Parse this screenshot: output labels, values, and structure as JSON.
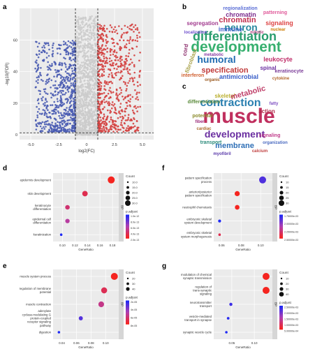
{
  "panels": {
    "a": "a",
    "b": "b",
    "c": "c",
    "d": "d",
    "e": "e",
    "f": "f",
    "g": "g"
  },
  "colors": {
    "down": "#4a5cb3",
    "up": "#d4403f",
    "ns": "#cccccc",
    "grad_low": "#1f2af5",
    "grad_mid": "#b03fb0",
    "grad_high": "#f5241f"
  },
  "chart_data": [
    {
      "panel": "a",
      "type": "scatter",
      "xlabel": "log2(FC)",
      "ylabel": "-log10(FDR)",
      "xticks": [
        "-5.0",
        "-2.5",
        "0",
        "2.5",
        "5.0"
      ],
      "yticks": [
        "0",
        "20",
        "40",
        "60"
      ],
      "xlim": [
        -6,
        6
      ],
      "ylim": [
        -3,
        80
      ],
      "thresholds": {
        "x": [
          -1,
          1
        ],
        "y": 1.3
      },
      "grid": true
    },
    {
      "panel": "b",
      "type": "wordcloud",
      "words": [
        "regionalization",
        "chromatin",
        "patterning",
        "segregation",
        "chromatin",
        "neuron",
        "signaling",
        "immune",
        "differentiation",
        "development",
        "humoral",
        "leukocyte",
        "fibroblast",
        "spinal",
        "specification",
        "antimicrobial",
        "keratinocyte",
        "cytokine",
        "cord",
        "interferon",
        "metabolic",
        "nuclear",
        "mitotic",
        "organic",
        "localization"
      ]
    },
    {
      "panel": "c",
      "type": "wordcloud",
      "words": [
        "skeletal",
        "metabolic",
        "contraction",
        "muscle",
        "development",
        "membrane",
        "potential",
        "differentiation",
        "signaling",
        "action",
        "transport",
        "fatty",
        "cardiac",
        "organization",
        "fiber",
        "myofibril",
        "calcium"
      ]
    },
    {
      "panel": "d",
      "type": "scatter",
      "xlabel": "GeneRatio",
      "xticks": [
        "0.10",
        "0.12",
        "0.14",
        "0.16",
        "0.18"
      ],
      "xlim": [
        0.085,
        0.19
      ],
      "categories": [
        "epidermis development",
        "skin development",
        "keratinocyte differentiation",
        "epidermal cell differentiation",
        "keratinization"
      ],
      "x": [
        0.178,
        0.136,
        0.108,
        0.108,
        0.098
      ],
      "count": [
        36,
        28,
        23,
        22,
        12
      ],
      "padj": [
        2e-13,
        5e-13,
        7e-13,
        1e-12,
        2e-12
      ],
      "facet": "BP",
      "legend": {
        "count_title": "Count",
        "count_labels": [
          "10.0",
          "15.0",
          "20.0",
          "25.0",
          "30.0"
        ],
        "color_title": "p.adjust",
        "color_labels": [
          "1.0e-12",
          "8.0e-13",
          "6.0e-13",
          "4.0e-13",
          "2.0e-13"
        ]
      }
    },
    {
      "panel": "e",
      "type": "scatter",
      "xlabel": "GeneRatio",
      "xticks": [
        "0.04",
        "0.06",
        "0.08",
        "0.10"
      ],
      "xlim": [
        0.028,
        0.118
      ],
      "categories": [
        "muscle system process",
        "regulation of membrane potential",
        "muscle contraction",
        "adenylate cyclase-modulating G protein-coupled receptor signaling pathway",
        "digestion"
      ],
      "x": [
        0.112,
        0.098,
        0.094,
        0.066,
        0.036
      ],
      "count": [
        40,
        34,
        32,
        22,
        12
      ],
      "padj": [
        2e-05,
        3e-05,
        4e-05,
        6.5e-05,
        7.5e-05
      ],
      "facet": "BP",
      "legend": {
        "count_title": "Count",
        "count_labels": [
          "20",
          "30",
          "40"
        ],
        "color_title": "p.adjust",
        "color_labels": [
          "2e-05",
          "4e-05",
          "6e-05",
          "8e-05"
        ]
      }
    },
    {
      "panel": "f",
      "type": "scatter",
      "xlabel": "GeneRatio",
      "xticks": [
        "0.06",
        "0.08",
        "0.10"
      ],
      "xlim": [
        0.052,
        0.112
      ],
      "categories": [
        "pattern specification process",
        "anterior/posterior pattern specification",
        "neutrophil chemotaxis",
        "embryonic skeletal system development",
        "embryonic skeletal system morphogenesis"
      ],
      "x": [
        0.102,
        0.076,
        0.076,
        0.058,
        0.058
      ],
      "count": [
        30,
        22,
        20,
        13,
        11
      ],
      "padj": [
        0.0022,
        0.0017,
        0.0017,
        0.0023,
        0.0018
      ],
      "facet": "BP",
      "legend": {
        "count_title": "Count",
        "count_labels": [
          "10",
          "15",
          "20",
          "25",
          "30"
        ],
        "color_title": "p.adjust",
        "color_labels": [
          "1.75000e-03",
          "2.00000e-03",
          "2.25000e-03",
          "2.50000e-03"
        ]
      }
    },
    {
      "panel": "g",
      "type": "scatter",
      "xlabel": "GeneRatio",
      "xticks": [
        "0.05",
        "0.10"
      ],
      "xlim": [
        0.01,
        0.14
      ],
      "categories": [
        "modulation of chemical synaptic transmission",
        "regulation of trans-synaptic signaling",
        "neurotransmitter transport",
        "vesicle-mediated transport in synapse",
        "synaptic vesicle cycle"
      ],
      "x": [
        0.126,
        0.126,
        0.048,
        0.042,
        0.038
      ],
      "count": [
        45,
        45,
        20,
        17,
        16
      ],
      "padj": [
        9e-05,
        9e-05,
        0.0028,
        0.003,
        0.0031
      ],
      "facet": "BP",
      "legend": {
        "count_title": "Count",
        "count_labels": [
          "10",
          "20",
          "30",
          "40"
        ],
        "color_title": "p.adjust",
        "color_labels": [
          "2.50000e-03",
          "2.00000e-03",
          "1.50000e-03",
          "1.00000e-03",
          "5.00000e-04"
        ]
      }
    }
  ]
}
